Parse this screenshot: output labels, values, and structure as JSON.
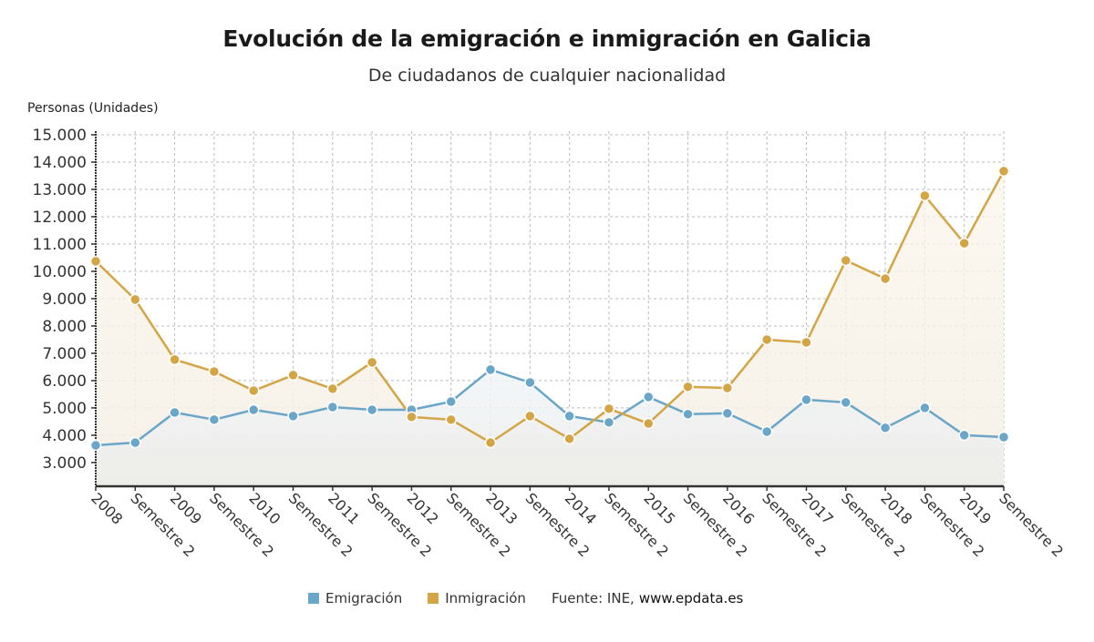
{
  "colors": {
    "emigration": "#6aa6c8",
    "inmigration": "#d4a545",
    "grid": "#bbbbbb",
    "axis": "#333333"
  },
  "chart_data": {
    "type": "line",
    "title": "Evolución de la emigración e inmigración en Galicia",
    "subtitle": "De ciudadanos de cualquier nacionalidad",
    "ylabel": "Personas (Unidades)",
    "xlabel": "",
    "ylim": [
      2130,
      15000
    ],
    "yticks": [
      3000,
      4000,
      5000,
      6000,
      7000,
      8000,
      9000,
      10000,
      11000,
      12000,
      13000,
      14000,
      15000
    ],
    "ytick_labels": [
      "3.000",
      "4.000",
      "5.000",
      "6.000",
      "7.000",
      "8.000",
      "9.000",
      "10.000",
      "11.000",
      "12.000",
      "13.000",
      "14.000",
      "15.000"
    ],
    "grid": true,
    "legend_position": "bottom",
    "categories": [
      "2008",
      "Semestre 2",
      "2009",
      "Semestre 2",
      "2010",
      "Semestre 2",
      "2011",
      "Semestre 2",
      "2012",
      "Semestre 2",
      "2013",
      "Semestre 2",
      "2014",
      "Semestre 2",
      "2015",
      "Semestre 2",
      "2016",
      "Semestre 2",
      "2017",
      "Semestre 2",
      "2018",
      "Semestre 2",
      "2019",
      "Semestre 2"
    ],
    "series": [
      {
        "name": "Emigración",
        "key": "emigration",
        "values": [
          3630,
          3730,
          4830,
          4570,
          4930,
          4700,
          5030,
          4930,
          4930,
          5230,
          6400,
          5930,
          4700,
          4470,
          5400,
          4770,
          4800,
          4130,
          5300,
          5200,
          4270,
          5000,
          4000,
          3930
        ]
      },
      {
        "name": "Inmigración",
        "key": "inmigration",
        "values": [
          10370,
          8970,
          6770,
          6330,
          5630,
          6200,
          5700,
          6670,
          4670,
          4570,
          3730,
          4700,
          3870,
          4970,
          4430,
          5770,
          5730,
          7500,
          7400,
          10400,
          9730,
          12770,
          11030,
          13670
        ]
      }
    ]
  },
  "legend": {
    "items": [
      {
        "label": "Emigración"
      },
      {
        "label": "Inmigración"
      }
    ],
    "source_prefix": "Fuente: INE,",
    "source_site": "www.epdata.es"
  }
}
